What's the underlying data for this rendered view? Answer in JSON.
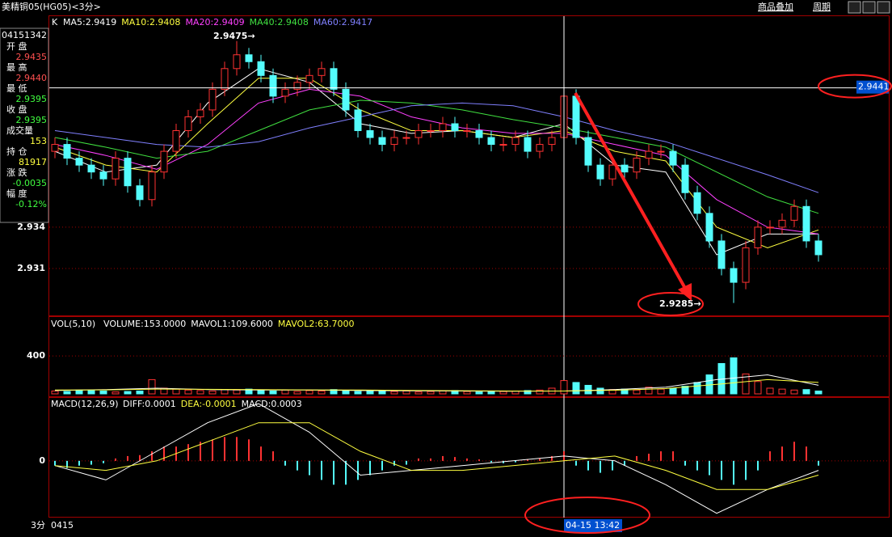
{
  "header": {
    "title": "美精铜05(HG05)<3分>",
    "menu": [
      "商品叠加",
      "周期"
    ]
  },
  "info_box": {
    "time": "04151342",
    "fields": [
      {
        "label": "开 盘",
        "value": "2.9435",
        "color": "#ff5050"
      },
      {
        "label": "最 高",
        "value": "2.9440",
        "color": "#ff5050"
      },
      {
        "label": "最 低",
        "value": "2.9395",
        "color": "#40ff40"
      },
      {
        "label": "收 盘",
        "value": "2.9395",
        "color": "#40ff40"
      },
      {
        "label": "成交量",
        "value": "153",
        "color": "#ffff40"
      },
      {
        "label": "持 仓",
        "value": "81917",
        "color": "#ffff40"
      },
      {
        "label": "涨 跌",
        "value": "-0.0035",
        "color": "#40ff40"
      },
      {
        "label": "幅 度",
        "value": "-0.12%",
        "color": "#40ff40"
      }
    ]
  },
  "chart_data": [
    {
      "type": "candlestick",
      "label": "K",
      "up_color": "#ff3232",
      "down_color": "#54fcfc",
      "ylim": [
        2.9276,
        2.9493
      ],
      "yticks": [
        2.931,
        2.934
      ],
      "high_label": "2.9475→",
      "low_label": "2.9285→",
      "crosshair": {
        "price": 2.9441,
        "time": "04-15 13:42"
      },
      "ohlc": [
        [
          2.9395,
          2.9405,
          2.939,
          2.94
        ],
        [
          2.94,
          2.9405,
          2.9385,
          2.939
        ],
        [
          2.939,
          2.9395,
          2.938,
          2.9385
        ],
        [
          2.9385,
          2.939,
          2.9375,
          2.938
        ],
        [
          2.938,
          2.9385,
          2.937,
          2.9375
        ],
        [
          2.9375,
          2.9395,
          2.937,
          2.939
        ],
        [
          2.939,
          2.9395,
          2.9365,
          2.937
        ],
        [
          2.937,
          2.9375,
          2.9355,
          2.936
        ],
        [
          2.936,
          2.9385,
          2.9355,
          2.938
        ],
        [
          2.938,
          2.94,
          2.9375,
          2.9395
        ],
        [
          2.9395,
          2.9415,
          2.939,
          2.941
        ],
        [
          2.941,
          2.9425,
          2.9405,
          2.942
        ],
        [
          2.942,
          2.943,
          2.9415,
          2.9425
        ],
        [
          2.9425,
          2.9445,
          2.942,
          2.944
        ],
        [
          2.944,
          2.946,
          2.9435,
          2.9455
        ],
        [
          2.9455,
          2.9475,
          2.945,
          2.9465
        ],
        [
          2.9465,
          2.947,
          2.9455,
          2.946
        ],
        [
          2.946,
          2.9465,
          2.9445,
          2.945
        ],
        [
          2.945,
          2.9455,
          2.943,
          2.9435
        ],
        [
          2.9435,
          2.9445,
          2.943,
          2.944
        ],
        [
          2.944,
          2.945,
          2.9435,
          2.9445
        ],
        [
          2.9445,
          2.9455,
          2.944,
          2.945
        ],
        [
          2.945,
          2.946,
          2.9445,
          2.9455
        ],
        [
          2.9455,
          2.946,
          2.9435,
          2.944
        ],
        [
          2.944,
          2.9445,
          2.942,
          2.9425
        ],
        [
          2.9425,
          2.943,
          2.9405,
          2.941
        ],
        [
          2.941,
          2.9415,
          2.94,
          2.9405
        ],
        [
          2.9405,
          2.941,
          2.9395,
          2.94
        ],
        [
          2.94,
          2.941,
          2.9395,
          2.9405
        ],
        [
          2.9405,
          2.941,
          2.94,
          2.9405
        ],
        [
          2.9405,
          2.9415,
          2.94,
          2.941
        ],
        [
          2.941,
          2.9415,
          2.9405,
          2.941
        ],
        [
          2.941,
          2.942,
          2.9405,
          2.9415
        ],
        [
          2.9415,
          2.942,
          2.9405,
          2.941
        ],
        [
          2.941,
          2.9415,
          2.9405,
          2.941
        ],
        [
          2.941,
          2.9415,
          2.94,
          2.9405
        ],
        [
          2.9405,
          2.941,
          2.9395,
          2.94
        ],
        [
          2.94,
          2.9405,
          2.9395,
          2.94
        ],
        [
          2.94,
          2.941,
          2.9395,
          2.9405
        ],
        [
          2.9405,
          2.941,
          2.939,
          2.9395
        ],
        [
          2.9395,
          2.9405,
          2.939,
          2.94
        ],
        [
          2.94,
          2.941,
          2.9395,
          2.9405
        ],
        [
          2.9405,
          2.944,
          2.94,
          2.9435
        ],
        [
          2.9435,
          2.944,
          2.94,
          2.9405
        ],
        [
          2.9405,
          2.941,
          2.938,
          2.9385
        ],
        [
          2.9385,
          2.939,
          2.937,
          2.9375
        ],
        [
          2.9375,
          2.939,
          2.937,
          2.9385
        ],
        [
          2.9385,
          2.939,
          2.9375,
          2.938
        ],
        [
          2.938,
          2.9395,
          2.9375,
          2.939
        ],
        [
          2.939,
          2.94,
          2.9385,
          2.9395
        ],
        [
          2.9395,
          2.94,
          2.939,
          2.9395
        ],
        [
          2.9395,
          2.94,
          2.938,
          2.9385
        ],
        [
          2.9385,
          2.939,
          2.936,
          2.9365
        ],
        [
          2.9365,
          2.937,
          2.9345,
          2.935
        ],
        [
          2.935,
          2.9355,
          2.9325,
          2.933
        ],
        [
          2.933,
          2.9335,
          2.9305,
          2.931
        ],
        [
          2.931,
          2.9315,
          2.9285,
          2.93
        ],
        [
          2.93,
          2.933,
          2.9295,
          2.9325
        ],
        [
          2.9325,
          2.9345,
          2.932,
          2.934
        ],
        [
          2.934,
          2.9345,
          2.9335,
          2.934
        ],
        [
          2.934,
          2.935,
          2.9335,
          2.9345
        ],
        [
          2.9345,
          2.936,
          2.934,
          2.9355
        ],
        [
          2.9355,
          2.936,
          2.9325,
          2.933
        ],
        [
          2.933,
          2.9335,
          2.9315,
          2.932
        ]
      ],
      "series": [
        {
          "name": "MA5:2.9419",
          "color": "#ffffff",
          "values": [
            2.9395,
            2.938,
            2.9385,
            2.943,
            2.9455,
            2.9445,
            2.9415,
            2.9408,
            2.941,
            2.9405,
            2.9415,
            2.9385,
            2.938,
            2.932,
            2.9335,
            2.9335
          ]
        },
        {
          "name": "MA10:2.9408",
          "color": "#ffff40",
          "values": [
            2.9398,
            2.9385,
            2.938,
            2.9415,
            2.9448,
            2.9448,
            2.9425,
            2.941,
            2.941,
            2.9405,
            2.941,
            2.9395,
            2.9388,
            2.934,
            2.9325,
            2.9338
          ]
        },
        {
          "name": "MA20:2.9409",
          "color": "#ff40ff",
          "values": [
            2.94,
            2.9392,
            2.9382,
            2.94,
            2.943,
            2.944,
            2.9435,
            2.942,
            2.9412,
            2.9408,
            2.9408,
            2.94,
            2.9392,
            2.936,
            2.934,
            2.9335
          ]
        },
        {
          "name": "MA40:2.9408",
          "color": "#40e040",
          "values": [
            2.9405,
            2.9398,
            2.939,
            2.9395,
            2.941,
            2.9425,
            2.9432,
            2.943,
            2.9425,
            2.9418,
            2.9412,
            2.9405,
            2.9398,
            2.938,
            2.9362,
            2.935
          ]
        },
        {
          "name": "MA60:2.9417",
          "color": "#8080ff",
          "values": [
            2.941,
            2.9405,
            2.94,
            2.9398,
            2.9402,
            2.9412,
            2.942,
            2.9428,
            2.943,
            2.9428,
            2.942,
            2.941,
            2.9402,
            2.939,
            2.9378,
            2.9365
          ]
        }
      ]
    },
    {
      "type": "bar",
      "label": "VOL(5,10)",
      "ylim": [
        0,
        810
      ],
      "yticks": [
        400
      ],
      "values": [
        30,
        25,
        40,
        35,
        30,
        20,
        25,
        30,
        150,
        60,
        50,
        40,
        35,
        30,
        45,
        40,
        50,
        35,
        30,
        40,
        25,
        35,
        30,
        45,
        30,
        25,
        35,
        30,
        25,
        30,
        20,
        25,
        30,
        35,
        25,
        20,
        30,
        25,
        30,
        35,
        40,
        60,
        140,
        120,
        90,
        60,
        45,
        50,
        40,
        70,
        50,
        60,
        80,
        120,
        200,
        320,
        380,
        210,
        130,
        60,
        50,
        40,
        45,
        30
      ],
      "series": [
        {
          "name": "VOLUME:153.0000",
          "color": "#ffffff",
          "values": []
        },
        {
          "name": "MAVOL1:109.6000",
          "color": "#ffffff",
          "values": [
            35,
            45,
            60,
            45,
            40,
            40,
            35,
            32,
            30,
            28,
            30,
            45,
            70,
            150,
            200,
            90
          ]
        },
        {
          "name": "MAVOL2:63.7000",
          "color": "#ffff40",
          "values": [
            40,
            42,
            50,
            48,
            44,
            42,
            40,
            36,
            33,
            30,
            30,
            38,
            55,
            100,
            150,
            120
          ]
        }
      ]
    },
    {
      "type": "macd",
      "label": "MACD(12,26,9)",
      "ylim": [
        -0.00119,
        0.00132
      ],
      "yticks": [
        0
      ],
      "values": [
        -0.0001,
        -0.00015,
        -0.0001,
        -8e-05,
        -5e-05,
        5e-05,
        0.0001,
        0.00012,
        0.0002,
        0.0003,
        0.0003,
        0.00035,
        0.0004,
        0.00045,
        0.0005,
        0.0005,
        0.00045,
        0.0003,
        0.0002,
        -0.0001,
        -0.0002,
        -0.0003,
        -0.0004,
        -0.0005,
        -0.0005,
        -0.0004,
        -0.0003,
        -0.0002,
        -0.0001,
        -8e-05,
        5e-05,
        5e-05,
        0.0001,
        8e-05,
        5e-05,
        3e-05,
        -3e-05,
        -5e-05,
        -3e-05,
        3e-05,
        5e-05,
        0.0001,
        0.0002,
        -0.0001,
        -0.0002,
        -0.00025,
        -0.0002,
        -0.0001,
        0.0001,
        0.00015,
        0.0002,
        0.0002,
        -0.0001,
        -0.0002,
        -0.0003,
        -0.0004,
        -0.0005,
        -0.0004,
        -0.0002,
        0.0002,
        0.0003,
        0.0004,
        0.0003,
        -0.0001
      ],
      "series": [
        {
          "name": "DIFF:0.0001",
          "color": "#ffffff",
          "values": [
            -0.0001,
            -0.0004,
            0.0002,
            0.0008,
            0.0012,
            0.0006,
            -0.0003,
            -0.0002,
            -0.0001,
            0,
            0.0001,
            0,
            -0.0005,
            -0.0011,
            -0.0006,
            -0.0002
          ]
        },
        {
          "name": "DEA:-0.0001",
          "color": "#ffff40",
          "values": [
            -0.0001,
            -0.0002,
            0,
            0.0004,
            0.0008,
            0.0008,
            0.0002,
            -0.0002,
            -0.0002,
            -0.0001,
            0,
            0.0001,
            -0.0002,
            -0.0006,
            -0.0006,
            -0.0003
          ]
        },
        {
          "name": "MACD:0.0003",
          "color": "#ffffff",
          "values": []
        }
      ]
    }
  ],
  "footer": {
    "period": "3分",
    "date": "0415"
  }
}
